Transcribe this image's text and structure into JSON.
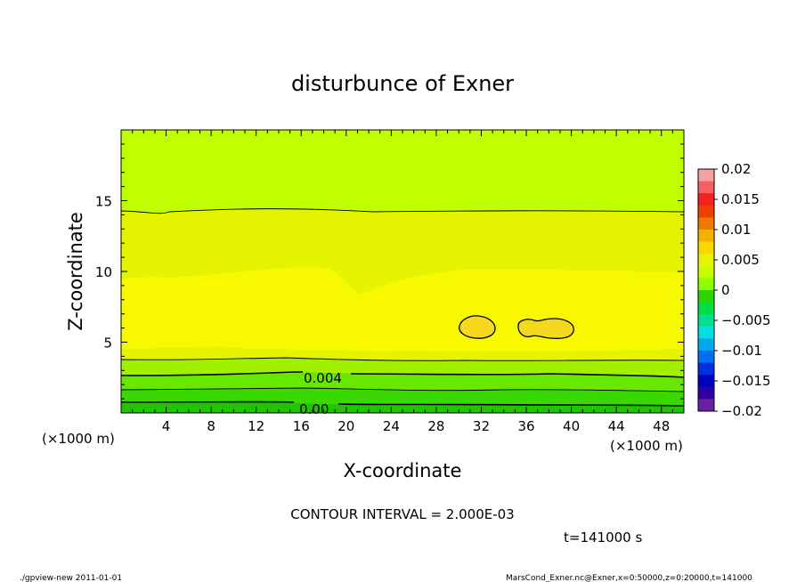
{
  "chart_data": {
    "type": "contour",
    "title": "disturbunce of Exner",
    "xlabel": "X-coordinate",
    "ylabel": "Z-coordinate",
    "x_unit_left": "(×1000 m)",
    "x_unit_right": "(×1000 m)",
    "xlim": [
      0,
      50
    ],
    "ylim": [
      0,
      20
    ],
    "x_ticks": [
      "4",
      "8",
      "12",
      "16",
      "20",
      "24",
      "28",
      "32",
      "36",
      "40",
      "44",
      "48"
    ],
    "y_ticks": [
      "5",
      "10",
      "15"
    ],
    "contour_labels": [
      "0.004",
      "0.00"
    ],
    "colorbar": {
      "ticks": [
        "0.02",
        "0.015",
        "0.01",
        "0.005",
        "0",
        "−0.005",
        "−0.01",
        "−0.015",
        "−0.02"
      ],
      "colors": [
        "#f7a0a0",
        "#f56060",
        "#f52020",
        "#f04000",
        "#f07a00",
        "#f5b000",
        "#f5d800",
        "#e9f200",
        "#c8ff00",
        "#8cff00",
        "#2bd400",
        "#00e040",
        "#00e090",
        "#00e0e0",
        "#00a8f0",
        "#0070f0",
        "#0030e0",
        "#0000c0",
        "#3000a0",
        "#6a20a0"
      ]
    },
    "field_colors": {
      "upper": "#c0ff00",
      "middle": "#e4f400",
      "core": "#f8f800",
      "max": "#f5d820",
      "low1": "#a0f000",
      "low2": "#66e800",
      "low3": "#38d800",
      "low4": "#20c400"
    },
    "interval_label": "CONTOUR INTERVAL = 2.000E-03",
    "time_label": "t=141000 s"
  },
  "footer": {
    "left": "./gpview-new   2011-01-01",
    "right": "MarsCond_Exner.nc@Exner,x=0:50000,z=0:20000,t=141000"
  }
}
